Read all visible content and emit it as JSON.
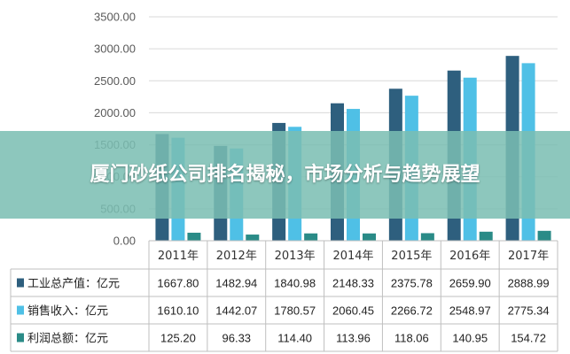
{
  "overlay": {
    "title": "厦门砂纸公司排名揭秘，市场分析与趋势展望",
    "background": "#7abeb2"
  },
  "chart_data": {
    "type": "bar",
    "categories": [
      "2011年",
      "2012年",
      "2013年",
      "2014年",
      "2015年",
      "2016年",
      "2017年"
    ],
    "series": [
      {
        "name": "工业总产值：亿元",
        "values": [
          1667.8,
          1482.94,
          1840.98,
          2148.33,
          2375.78,
          2659.9,
          2888.99
        ],
        "labels": [
          "1667.80",
          "1482.94",
          "1840.98",
          "2148.33",
          "2375.78",
          "2659.90",
          "2888.99"
        ],
        "color": "#2e5f7e"
      },
      {
        "name": "销售收入：亿元",
        "values": [
          1610.1,
          1442.07,
          1780.57,
          2060.45,
          2266.72,
          2548.97,
          2775.34
        ],
        "labels": [
          "1610.10",
          "1442.07",
          "1780.57",
          "2060.45",
          "2266.72",
          "2548.97",
          "2775.34"
        ],
        "color": "#4fc0e6"
      },
      {
        "name": "利润总额：亿元",
        "values": [
          125.2,
          96.33,
          114.4,
          113.96,
          118.06,
          140.95,
          154.72
        ],
        "labels": [
          "125.20",
          "96.33",
          "114.40",
          "113.96",
          "118.06",
          "140.95",
          "154.72"
        ],
        "color": "#2a8b87"
      }
    ],
    "y_ticks": [
      "0.00",
      "500.00",
      "1000.00",
      "1500.00",
      "2000.00",
      "2500.00",
      "3000.00",
      "3500.00"
    ],
    "ylim": [
      0,
      3500
    ],
    "grid": true,
    "legend": "data-table"
  }
}
